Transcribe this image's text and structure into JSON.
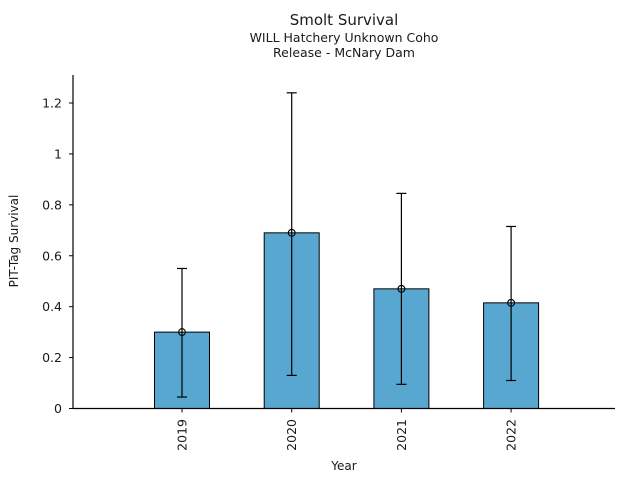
{
  "chart_data": {
    "type": "bar",
    "title": "Smolt Survival",
    "subtitle_lines": [
      "WILL Hatchery Unknown Coho",
      "Release - McNary Dam"
    ],
    "xlabel": "Year",
    "ylabel": "PIT-Tag Survival",
    "categories": [
      "2019",
      "2020",
      "2021",
      "2022"
    ],
    "values": [
      0.3,
      0.69,
      0.47,
      0.415
    ],
    "ci_low": [
      0.045,
      0.13,
      0.095,
      0.11
    ],
    "ci_high": [
      0.55,
      1.24,
      0.845,
      0.715
    ],
    "yticks": [
      0,
      0.2,
      0.4,
      0.6,
      0.8,
      1,
      1.2
    ],
    "ytick_labels": [
      "0",
      "0.2",
      "0.4",
      "0.6",
      "0.8",
      "1",
      "1.2"
    ],
    "ylim": [
      0,
      1.31
    ],
    "grid": false,
    "legend": false,
    "marker": "open-circle",
    "error_caps": true,
    "colors": {
      "bar": "#58a7d1",
      "bar_edge": "#000000",
      "error": "#000000",
      "axis": "#000000",
      "text": "#1a1a1a"
    }
  }
}
